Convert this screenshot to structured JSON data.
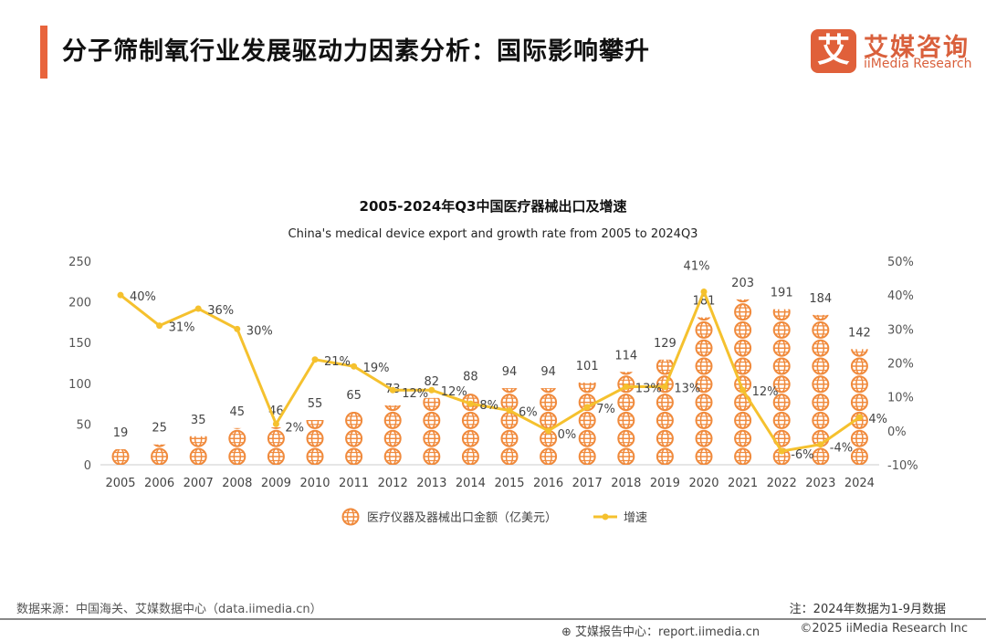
{
  "header": {
    "title": "分子筛制氧行业发展驱动力因素分析：国际影响攀升"
  },
  "logo": {
    "mark": "艾",
    "cn": "艾媒咨询",
    "en": "iiMedia Research"
  },
  "footer": {
    "source": "数据来源：中国海关、艾媒数据中心（data.iimedia.cn）",
    "note": "注：2024年数据为1-9月数据",
    "report": "艾媒报告中心：report.iimedia.cn",
    "copyright": "©2025  iiMedia Research  Inc"
  },
  "colors": {
    "accent": "#e8643c",
    "bar": "#f08a3c",
    "line": "#f5c12e"
  },
  "chart_data": {
    "type": "bar+line",
    "title": "2005-2024年Q3中国医疗器械出口及增速",
    "subtitle": "China's medical device export and growth rate from 2005 to 2024Q3",
    "categories": [
      "2005",
      "2006",
      "2007",
      "2008",
      "2009",
      "2010",
      "2011",
      "2012",
      "2013",
      "2014",
      "2015",
      "2016",
      "2017",
      "2018",
      "2019",
      "2020",
      "2021",
      "2022",
      "2023",
      "2024"
    ],
    "series": [
      {
        "name": "医疗仪器及器械出口金额（亿美元）",
        "type": "bar",
        "axis": "left",
        "values": [
          19,
          25,
          35,
          45,
          46,
          55,
          65,
          73,
          82,
          88,
          94,
          94,
          101,
          114,
          129,
          181,
          203,
          191,
          184,
          142
        ]
      },
      {
        "name": "增速",
        "type": "line",
        "axis": "right",
        "values": [
          40,
          31,
          36,
          30,
          2,
          21,
          19,
          12,
          12,
          8,
          6,
          0,
          7,
          13,
          13,
          41,
          12,
          -6,
          -4,
          4
        ]
      }
    ],
    "y_left": {
      "range": [
        0,
        250
      ],
      "ticks": [
        0,
        50,
        100,
        150,
        200,
        250
      ]
    },
    "y_right": {
      "range": [
        -10,
        50
      ],
      "ticks": [
        "-10%",
        "0%",
        "10%",
        "20%",
        "30%",
        "40%",
        "50%"
      ]
    },
    "legend": "bottom",
    "grid": false
  }
}
